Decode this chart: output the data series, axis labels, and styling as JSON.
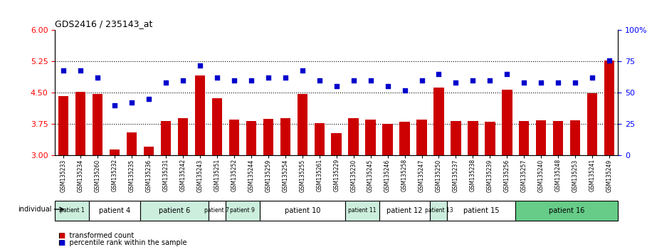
{
  "title": "GDS2416 / 235143_at",
  "samples": [
    "GSM135233",
    "GSM135234",
    "GSM135260",
    "GSM135232",
    "GSM135235",
    "GSM135236",
    "GSM135231",
    "GSM135242",
    "GSM135243",
    "GSM135251",
    "GSM135252",
    "GSM135244",
    "GSM135259",
    "GSM135254",
    "GSM135255",
    "GSM135261",
    "GSM135229",
    "GSM135230",
    "GSM135245",
    "GSM135246",
    "GSM135258",
    "GSM135247",
    "GSM135250",
    "GSM135237",
    "GSM135238",
    "GSM135239",
    "GSM135256",
    "GSM135257",
    "GSM135240",
    "GSM135248",
    "GSM135253",
    "GSM135241",
    "GSM135249"
  ],
  "bar_values": [
    4.42,
    4.52,
    4.46,
    3.13,
    3.55,
    3.2,
    3.82,
    3.88,
    4.92,
    4.36,
    3.85,
    3.82,
    3.86,
    3.88,
    4.47,
    3.77,
    3.52,
    3.88,
    3.85,
    3.75,
    3.8,
    3.85,
    4.62,
    3.82,
    3.82,
    3.8,
    4.57,
    3.82,
    3.84,
    3.82,
    3.84,
    4.48,
    5.28
  ],
  "dot_values": [
    68,
    68,
    62,
    40,
    42,
    45,
    58,
    60,
    72,
    62,
    60,
    60,
    62,
    62,
    68,
    60,
    55,
    60,
    60,
    55,
    52,
    60,
    65,
    58,
    60,
    60,
    65,
    58,
    58,
    58,
    58,
    62,
    76
  ],
  "patient_groups": [
    {
      "label": "patient 1",
      "start": 0,
      "end": 2,
      "color": "#cceedd"
    },
    {
      "label": "patient 4",
      "start": 2,
      "end": 5,
      "color": "#ffffff"
    },
    {
      "label": "patient 6",
      "start": 5,
      "end": 9,
      "color": "#cceedd"
    },
    {
      "label": "patient 7",
      "start": 9,
      "end": 10,
      "color": "#ffffff"
    },
    {
      "label": "patient 9",
      "start": 10,
      "end": 12,
      "color": "#cceedd"
    },
    {
      "label": "patient 10",
      "start": 12,
      "end": 17,
      "color": "#ffffff"
    },
    {
      "label": "patient 11",
      "start": 17,
      "end": 19,
      "color": "#cceedd"
    },
    {
      "label": "patient 12",
      "start": 19,
      "end": 22,
      "color": "#ffffff"
    },
    {
      "label": "patient 13",
      "start": 22,
      "end": 23,
      "color": "#cceedd"
    },
    {
      "label": "patient 15",
      "start": 23,
      "end": 27,
      "color": "#ffffff"
    },
    {
      "label": "patient 16",
      "start": 27,
      "end": 33,
      "color": "#66cc88"
    }
  ],
  "ylim_left": [
    3.0,
    6.0
  ],
  "yticks_left": [
    3.0,
    3.75,
    4.5,
    5.25,
    6.0
  ],
  "ylim_right": [
    0,
    100
  ],
  "yticks_right": [
    0,
    25,
    50,
    75,
    100
  ],
  "bar_color": "#cc0000",
  "dot_color": "#0000cc",
  "hline_values": [
    3.75,
    4.5,
    5.25
  ],
  "bg_color": "#ffffff"
}
